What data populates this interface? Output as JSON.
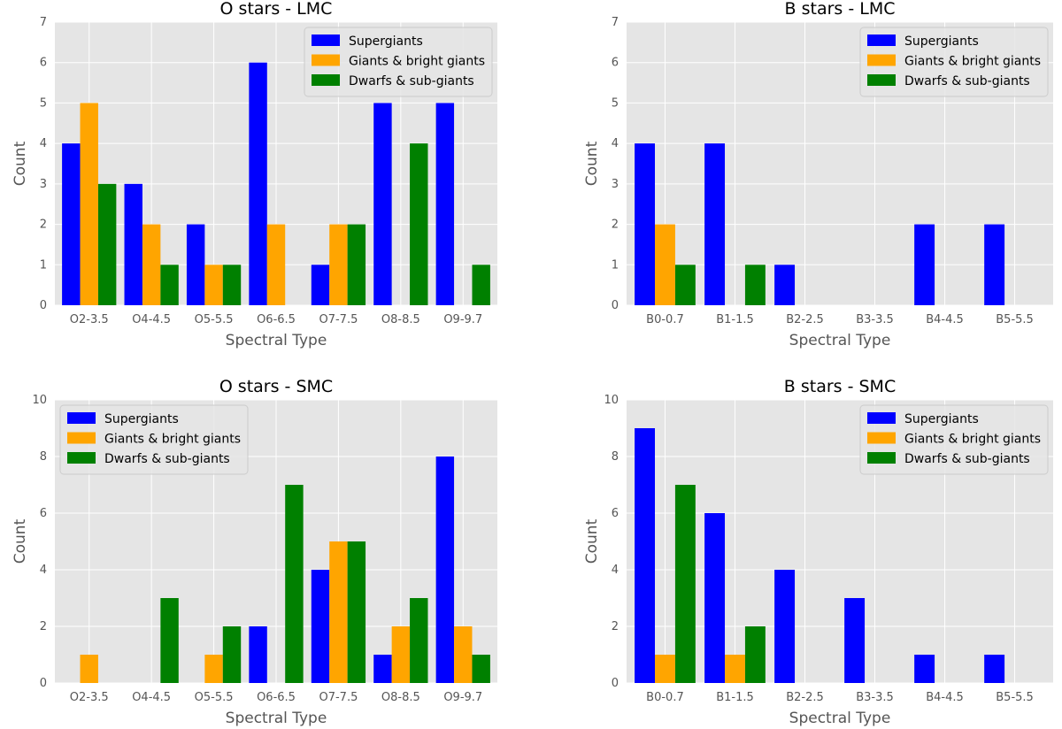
{
  "chart_data": [
    {
      "type": "bar",
      "title": "O stars - LMC",
      "xlabel": "Spectral Type",
      "ylabel": "Count",
      "ylim": [
        0,
        7
      ],
      "yticks": [
        0,
        1,
        2,
        3,
        4,
        5,
        6,
        7
      ],
      "categories": [
        "O2-3.5",
        "O4-4.5",
        "O5-5.5",
        "O6-6.5",
        "O7-7.5",
        "O8-8.5",
        "O9-9.7"
      ],
      "series": [
        {
          "name": "Supergiants",
          "values": [
            4,
            3,
            2,
            6,
            1,
            5,
            5
          ]
        },
        {
          "name": "Giants & bright giants",
          "values": [
            5,
            2,
            1,
            2,
            2,
            0,
            0
          ]
        },
        {
          "name": "Dwarfs & sub-giants",
          "values": [
            3,
            1,
            1,
            0,
            2,
            4,
            1
          ]
        }
      ],
      "legend_position": "top-right",
      "grid": true
    },
    {
      "type": "bar",
      "title": "B stars - LMC",
      "xlabel": "Spectral Type",
      "ylabel": "Count",
      "ylim": [
        0,
        7
      ],
      "yticks": [
        0,
        1,
        2,
        3,
        4,
        5,
        6,
        7
      ],
      "categories": [
        "B0-0.7",
        "B1-1.5",
        "B2-2.5",
        "B3-3.5",
        "B4-4.5",
        "B5-5.5"
      ],
      "series": [
        {
          "name": "Supergiants",
          "values": [
            4,
            4,
            1,
            0,
            2,
            2
          ]
        },
        {
          "name": "Giants & bright giants",
          "values": [
            2,
            0,
            0,
            0,
            0,
            0
          ]
        },
        {
          "name": "Dwarfs & sub-giants",
          "values": [
            1,
            1,
            0,
            0,
            0,
            0
          ]
        }
      ],
      "legend_position": "top-right",
      "grid": true
    },
    {
      "type": "bar",
      "title": "O stars - SMC",
      "xlabel": "Spectral Type",
      "ylabel": "Count",
      "ylim": [
        0,
        10
      ],
      "yticks": [
        0,
        2,
        4,
        6,
        8,
        10
      ],
      "categories": [
        "O2-3.5",
        "O4-4.5",
        "O5-5.5",
        "O6-6.5",
        "O7-7.5",
        "O8-8.5",
        "O9-9.7"
      ],
      "series": [
        {
          "name": "Supergiants",
          "values": [
            0,
            0,
            0,
            2,
            4,
            1,
            8
          ]
        },
        {
          "name": "Giants & bright giants",
          "values": [
            1,
            0,
            1,
            0,
            5,
            2,
            2
          ]
        },
        {
          "name": "Dwarfs & sub-giants",
          "values": [
            0,
            3,
            2,
            7,
            5,
            3,
            1
          ]
        }
      ],
      "legend_position": "top-left",
      "grid": true
    },
    {
      "type": "bar",
      "title": "B stars - SMC",
      "xlabel": "Spectral Type",
      "ylabel": "Count",
      "ylim": [
        0,
        10
      ],
      "yticks": [
        0,
        2,
        4,
        6,
        8,
        10
      ],
      "categories": [
        "B0-0.7",
        "B1-1.5",
        "B2-2.5",
        "B3-3.5",
        "B4-4.5",
        "B5-5.5"
      ],
      "series": [
        {
          "name": "Supergiants",
          "values": [
            9,
            6,
            4,
            3,
            1,
            1
          ]
        },
        {
          "name": "Giants & bright giants",
          "values": [
            1,
            1,
            0,
            0,
            0,
            0
          ]
        },
        {
          "name": "Dwarfs & sub-giants",
          "values": [
            7,
            2,
            0,
            0,
            0,
            0
          ]
        }
      ],
      "legend_position": "top-right",
      "grid": true
    }
  ],
  "colors": {
    "Supergiants": "#0000ff",
    "Giants & bright giants": "#ffa500",
    "Dwarfs & sub-giants": "#008000",
    "plot_background": "#e5e5e5",
    "grid": "#ffffff"
  }
}
